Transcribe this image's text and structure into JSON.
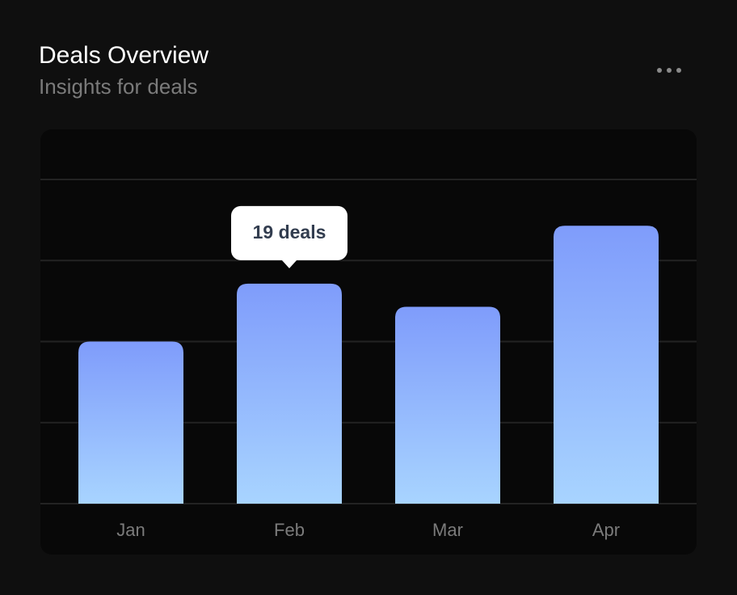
{
  "chart_data": {
    "type": "bar",
    "title": "Deals Overview",
    "subtitle": "Insights for deals",
    "categories": [
      "Jan",
      "Feb",
      "Mar",
      "Apr"
    ],
    "values": [
      14,
      19,
      17,
      24
    ],
    "value_labels": [
      null,
      "19 deals",
      null,
      null
    ],
    "color": [
      "#7f9cfb",
      "#a8d4ff"
    ],
    "ylim": [
      0,
      28
    ],
    "yticks": [
      0,
      7,
      14,
      21,
      28
    ],
    "grid": true
  }
}
